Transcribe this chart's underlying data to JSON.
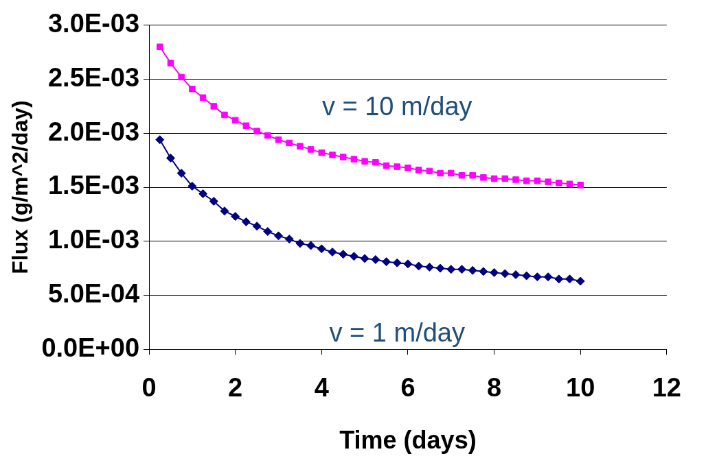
{
  "chart_data": {
    "type": "line",
    "xlabel": "Time (days)",
    "ylabel": "Flux (g/m^2/day)",
    "x": [
      0.25,
      0.5,
      0.75,
      1,
      1.25,
      1.5,
      1.75,
      2,
      2.25,
      2.5,
      2.75,
      3,
      3.25,
      3.5,
      3.75,
      4,
      4.25,
      4.5,
      4.75,
      5,
      5.25,
      5.5,
      5.75,
      6,
      6.25,
      6.5,
      6.75,
      7,
      7.25,
      7.5,
      7.75,
      8,
      8.25,
      8.5,
      8.75,
      9,
      9.25,
      9.5,
      9.75,
      10
    ],
    "series": [
      {
        "name": "v = 10 m/day",
        "color": "#ff00ff",
        "marker": "square",
        "values": [
          0.0028,
          0.00265,
          0.00252,
          0.00241,
          0.00233,
          0.00225,
          0.00217,
          0.00212,
          0.00207,
          0.00202,
          0.00198,
          0.00194,
          0.00191,
          0.00188,
          0.00185,
          0.00182,
          0.0018,
          0.00178,
          0.00176,
          0.00174,
          0.00173,
          0.0017,
          0.00169,
          0.00168,
          0.00166,
          0.00165,
          0.00163,
          0.00163,
          0.00161,
          0.00161,
          0.00159,
          0.00158,
          0.00158,
          0.00157,
          0.00156,
          0.00156,
          0.00155,
          0.00154,
          0.00153,
          0.00152
        ]
      },
      {
        "name": "v = 1 m/day",
        "color": "#000080",
        "marker": "diamond",
        "values": [
          0.00194,
          0.00177,
          0.00163,
          0.00151,
          0.00144,
          0.00137,
          0.00128,
          0.00123,
          0.00118,
          0.00114,
          0.00109,
          0.00105,
          0.00102,
          0.00098,
          0.00096,
          0.00093,
          0.0009,
          0.00088,
          0.00086,
          0.00084,
          0.00083,
          0.00081,
          0.0008,
          0.00079,
          0.00077,
          0.00076,
          0.00075,
          0.00074,
          0.00074,
          0.00073,
          0.00072,
          0.00071,
          0.0007,
          0.00069,
          0.00068,
          0.00067,
          0.00067,
          0.00065,
          0.00065,
          0.00063
        ]
      }
    ],
    "xlim": [
      0,
      12
    ],
    "xticks": [
      0,
      2,
      4,
      6,
      8,
      10,
      12
    ],
    "ylim": [
      0,
      0.003
    ],
    "yticks": [
      {
        "value": 0,
        "label": "0.0E+00"
      },
      {
        "value": 0.0005,
        "label": "5.0E-04"
      },
      {
        "value": 0.001,
        "label": "1.0E-03"
      },
      {
        "value": 0.0015,
        "label": "1.5E-03"
      },
      {
        "value": 0.002,
        "label": "2.0E-03"
      },
      {
        "value": 0.0025,
        "label": "2.5E-03"
      },
      {
        "value": 0.003,
        "label": "3.0E-03"
      }
    ],
    "grid": "y",
    "legend": false,
    "line_style": "solid"
  }
}
